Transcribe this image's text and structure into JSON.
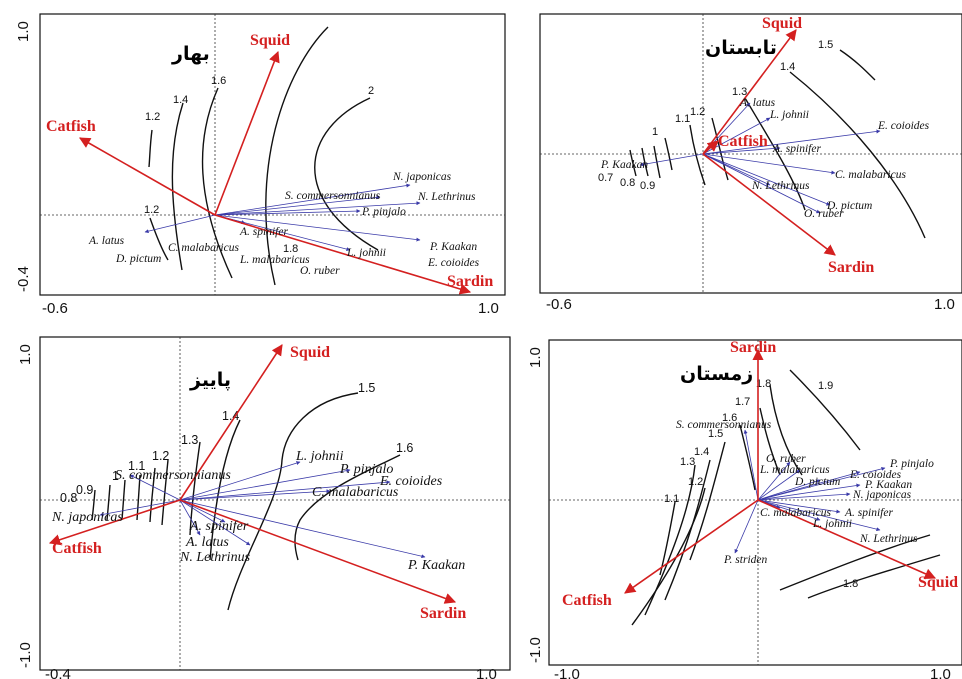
{
  "chart_data": [
    {
      "type": "scatter",
      "title": "بهار",
      "xlim": [
        -0.6,
        1.0
      ],
      "ylim": [
        -0.4,
        1.0
      ],
      "xticks": [
        "-0.6",
        "1.0"
      ],
      "yticks": [
        "-0.4",
        "1.0"
      ],
      "environmental_vectors": [
        {
          "name": "Squid",
          "x": 0.23,
          "y": 0.91
        },
        {
          "name": "Catfish",
          "x": -0.48,
          "y": 0.35
        },
        {
          "name": "Sardin",
          "x": 0.97,
          "y": -0.39
        }
      ],
      "species": [
        "N. japonicas",
        "S. commersonnianus",
        "N. Lethrinus",
        "P. pinjalo",
        "A. spinifer",
        "A. latus",
        "C. malabaricus",
        "D. pictum",
        "L. malabaricus",
        "O. ruber",
        "L. johnii",
        "P. Kaakan",
        "E. coioides"
      ],
      "isoline_labels": [
        "1.2",
        "1.4",
        "1.6",
        "2",
        "1.2",
        "1.8"
      ]
    },
    {
      "type": "scatter",
      "title": "تابستان",
      "xlim": [
        -0.6,
        1.0
      ],
      "ylim": [
        -0.6,
        1.0
      ],
      "xticks": [
        "-0.6",
        "1.0"
      ],
      "yticks": [],
      "environmental_vectors": [
        {
          "name": "Squid",
          "x": 0.33,
          "y": 0.86
        },
        {
          "name": "Catfish",
          "x": 0.05,
          "y": 0.09
        },
        {
          "name": "Sardin",
          "x": 0.45,
          "y": -0.53
        }
      ],
      "species": [
        "A. latus",
        "L. johnii",
        "E. coioides",
        "A. spinifer",
        "P. Kaakan",
        "C. malabaricus",
        "N. Lethrinus",
        "D. pictum",
        "O. ruber"
      ],
      "isoline_labels": [
        "1.5",
        "1.4",
        "1.3",
        "1.2",
        "1.1",
        "1",
        "0.7",
        "0.8",
        "0.9"
      ]
    },
    {
      "type": "scatter",
      "title": "پاییز",
      "xlim": [
        -0.4,
        1.0
      ],
      "ylim": [
        -1.0,
        1.0
      ],
      "xticks": [
        "-0.4",
        "1.0"
      ],
      "yticks": [
        "1.0",
        "-1.0"
      ],
      "environmental_vectors": [
        {
          "name": "Squid",
          "x": 0.44,
          "y": 1.0
        },
        {
          "name": "Catfish",
          "x": -0.57,
          "y": -0.29
        },
        {
          "name": "Sardin",
          "x": 1.04,
          "y": -0.83
        }
      ],
      "species": [
        "L. johnii",
        "P. pinjalo",
        "S. commersonnianus",
        "E. coioides",
        "C. malabaricus",
        "N. japonicas",
        "A. spinifer",
        "A. latus",
        "N. Lethrinus",
        "P. Kaakan"
      ],
      "isoline_labels": [
        "1.5",
        "1.4",
        "1.3",
        "1.2",
        "1.1",
        "1",
        "0.9",
        "0.8",
        "1.6"
      ]
    },
    {
      "type": "scatter",
      "title": "زمستان",
      "xlim": [
        -1.0,
        1.0
      ],
      "ylim": [
        -1.0,
        1.0
      ],
      "xticks": [
        "-1.0",
        "1.0"
      ],
      "yticks": [
        "1.0",
        "-1.0"
      ],
      "environmental_vectors": [
        {
          "name": "Sardin",
          "x": 0.0,
          "y": 1.0
        },
        {
          "name": "Catfish",
          "x": -0.7,
          "y": -0.61
        },
        {
          "name": "Squid",
          "x": 1.0,
          "y": -0.53
        }
      ],
      "species": [
        "S. commersonnianus",
        "O. ruber",
        "L. malabaricus",
        "E. coioides",
        "P. pinjalo",
        "D. pictum",
        "P. Kaakan",
        "N. japonicas",
        "C. malabaricus",
        "A. spinifer",
        "L. johnii",
        "N. Lethrinus",
        "P. striden"
      ],
      "isoline_labels": [
        "1.8",
        "1.9",
        "1.7",
        "1.6",
        "1.5",
        "1.4",
        "1.3",
        "1.2",
        "1.1",
        "1.8"
      ]
    }
  ]
}
